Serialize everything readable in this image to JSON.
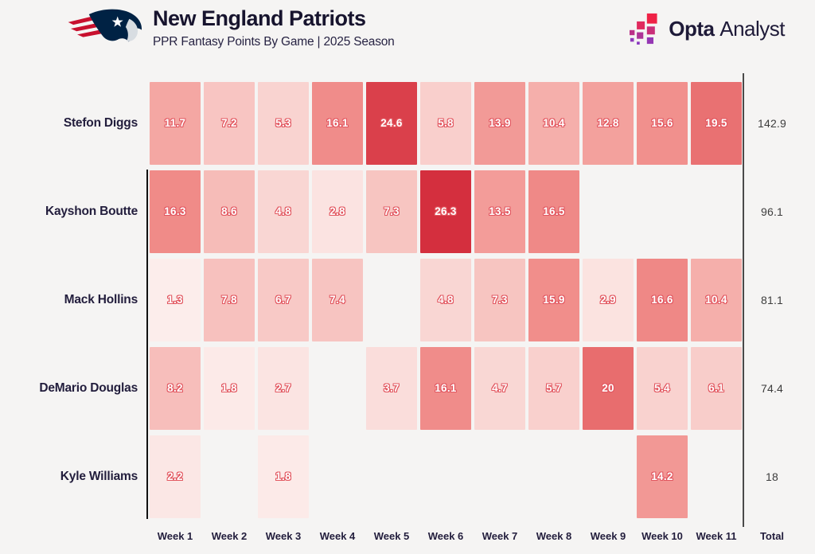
{
  "header": {
    "title": "New England Patriots",
    "subtitle": "PPR Fantasy Points By Game | 2025 Season"
  },
  "brand": {
    "opta_bold": "Opta",
    "opta_light": "Analyst"
  },
  "colors": {
    "background": "#f5f4f3",
    "title_navy": "#17142e",
    "label_navy": "#221d3c",
    "total_text": "#3d3d3d",
    "cell_text": "#ffffff",
    "cell_text_outline": "#e2565f",
    "axis_black": "#111111",
    "separator_gray": "#4a4a4a",
    "patriots_navy": "#002244",
    "patriots_red": "#c8102e",
    "patriots_silver": "#d8dde2",
    "opta_red": "#ef2246",
    "opta_purple": "#8f38bb"
  },
  "chart_data": {
    "type": "heatmap",
    "title": "New England Patriots",
    "subtitle": "PPR Fantasy Points By Game | 2025 Season",
    "x_labels": [
      "Week 1",
      "Week 2",
      "Week 3",
      "Week 4",
      "Week 5",
      "Week 6",
      "Week 7",
      "Week 8",
      "Week 9",
      "Week 10",
      "Week 11"
    ],
    "total_label": "Total",
    "rows": [
      {
        "player": "Stefon Diggs",
        "values": [
          11.7,
          7.2,
          5.3,
          16.1,
          24.6,
          5.8,
          13.9,
          10.4,
          12.8,
          15.6,
          19.5
        ],
        "total": "142.9"
      },
      {
        "player": "Kayshon Boutte",
        "values": [
          16.3,
          8.6,
          4.8,
          2.8,
          7.3,
          26.3,
          13.5,
          16.5,
          null,
          null,
          null
        ],
        "total": "96.1"
      },
      {
        "player": "Mack Hollins",
        "values": [
          1.3,
          7.8,
          6.7,
          7.4,
          null,
          4.8,
          7.3,
          15.9,
          2.9,
          16.6,
          10.4
        ],
        "total": "81.1"
      },
      {
        "player": "DeMario Douglas",
        "values": [
          8.2,
          1.8,
          2.7,
          null,
          3.7,
          16.1,
          4.7,
          5.7,
          20,
          5.4,
          6.1
        ],
        "total": "74.4"
      },
      {
        "player": "Kyle Williams",
        "values": [
          2.2,
          null,
          1.8,
          null,
          null,
          null,
          null,
          null,
          null,
          14.2,
          null
        ],
        "total": "18"
      }
    ],
    "value_domain": [
      0,
      26.3
    ],
    "legend": "none",
    "grid": "off",
    "colormap_stops": [
      [
        0.0,
        "#fdf6f4"
      ],
      [
        0.2,
        "#f9d3d0"
      ],
      [
        0.4,
        "#f5aeaa"
      ],
      [
        0.6,
        "#f18f8c"
      ],
      [
        0.8,
        "#e66467"
      ],
      [
        1.0,
        "#d42f3e"
      ]
    ]
  }
}
